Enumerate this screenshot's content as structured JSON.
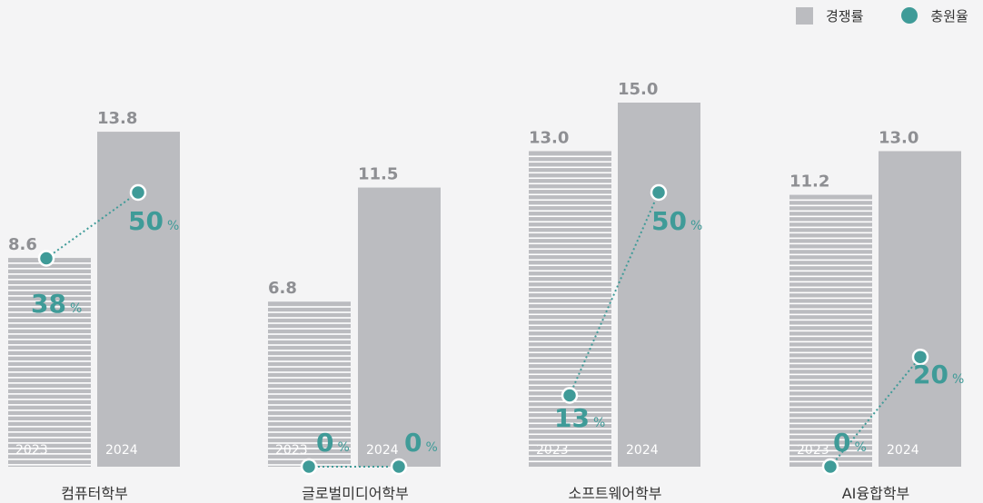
{
  "legend": {
    "competition_label": "경쟁률",
    "enrollment_label": "충원율"
  },
  "colors": {
    "bar": "#bbbcc0",
    "stripe": "#ffffff",
    "accent": "#3f9b98",
    "value_text": "#8e8f93",
    "category_text": "#333333"
  },
  "chart_data": {
    "type": "bar",
    "categories": [
      "컴퓨터학부",
      "글로벌미디어학부",
      "소프트웨어학부",
      "AI융합학부"
    ],
    "years": [
      "2023",
      "2024"
    ],
    "series": [
      {
        "name": "경쟁률",
        "type": "bar",
        "values_2023": [
          8.6,
          6.8,
          13.0,
          11.2
        ],
        "values_2024": [
          13.8,
          11.5,
          15.0,
          13.0
        ],
        "labels_2023": [
          "8.6",
          "6.8",
          "13.0",
          "11.2"
        ],
        "labels_2024": [
          "13.8",
          "11.5",
          "15.0",
          "13.0"
        ]
      },
      {
        "name": "충원율",
        "type": "line",
        "values_2023": [
          38,
          0,
          13,
          0
        ],
        "values_2024": [
          50,
          0,
          50,
          20
        ],
        "unit": "%"
      }
    ],
    "ylim": [
      0,
      15.0
    ],
    "grid": false,
    "legend_position": "top-right"
  }
}
